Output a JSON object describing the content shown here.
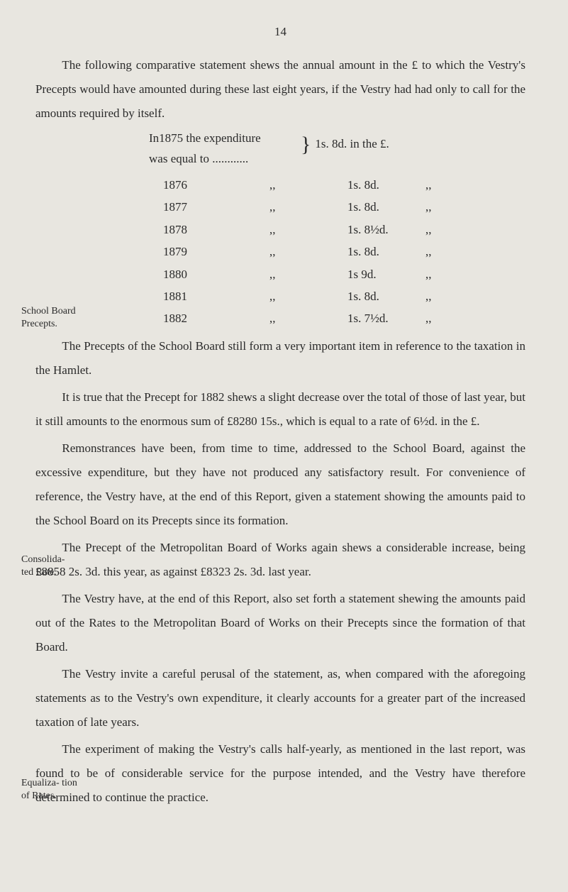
{
  "page_number": "14",
  "paragraphs": {
    "p1": "The following comparative statement shews the annual amount in the £ to which the Vestry's Precepts would have amounted during these last eight years, if the Vestry had had only to call for the amounts required by itself.",
    "p_first_line1": "In1875 the expenditure",
    "p_first_line2": "was equal to ............",
    "p_first_right": "1s. 8d. in the £.",
    "p2": "The Precepts of the School Board still form a very important item in reference to the taxation in the Hamlet.",
    "p3": "It is true that the Precept for 1882 shews a slight decrease over the total of those of last year, but it still amounts to the enormous sum of £8280 15s., which is equal to a rate of 6½d. in the £.",
    "p4": "Remonstrances have been, from time to time, addressed to the School Board, against the excessive expenditure, but they have not produced any satisfactory result. For convenience of reference, the Vestry have, at the end of this Report, given a statement showing the amounts paid to the School Board on its Precepts since its formation.",
    "p5": "The Precept of the Metropolitan Board of Works again shews a considerable increase, being £8858 2s. 3d. this year, as against £8323 2s. 3d. last year.",
    "p6": "The Vestry have, at the end of this Report, also set forth a statement shewing the amounts paid out of the Rates to the Metropolitan Board of Works on their Precepts since the formation of that Board.",
    "p7": "The Vestry invite a careful perusal of the statement, as, when compared with the aforegoing statements as to the Vestry's own expenditure, it clearly accounts for a greater part of the increased taxation of late years.",
    "p8": "The experiment of making the Vestry's calls half-yearly, as mentioned in the last report, was found to be of considerable service for the purpose intended, and the Vestry have therefore determined to continue the practice."
  },
  "rate_rows": [
    {
      "year": "1876",
      "ditto1": ",,",
      "value": "1s. 8d.",
      "ditto2": ",,"
    },
    {
      "year": "1877",
      "ditto1": ",,",
      "value": "1s. 8d.",
      "ditto2": ",,"
    },
    {
      "year": "1878",
      "ditto1": ",,",
      "value": "1s. 8½d.",
      "ditto2": ",,"
    },
    {
      "year": "1879",
      "ditto1": ",,",
      "value": "1s. 8d.",
      "ditto2": ",,"
    },
    {
      "year": "1880",
      "ditto1": ",,",
      "value": "1s 9d.",
      "ditto2": ",,"
    },
    {
      "year": "1881",
      "ditto1": ",,",
      "value": "1s. 8d.",
      "ditto2": ",,"
    },
    {
      "year": "1882",
      "ditto1": ",,",
      "value": "1s. 7½d.",
      "ditto2": ",,"
    }
  ],
  "margin_notes": {
    "school": "School Board Precepts.",
    "consol": "Consolida- ted Rate.",
    "equal": "Equaliza- tion of Rates."
  },
  "margin_positions": {
    "school": 430,
    "consol": 780,
    "equal": 1095
  },
  "brace": "}"
}
